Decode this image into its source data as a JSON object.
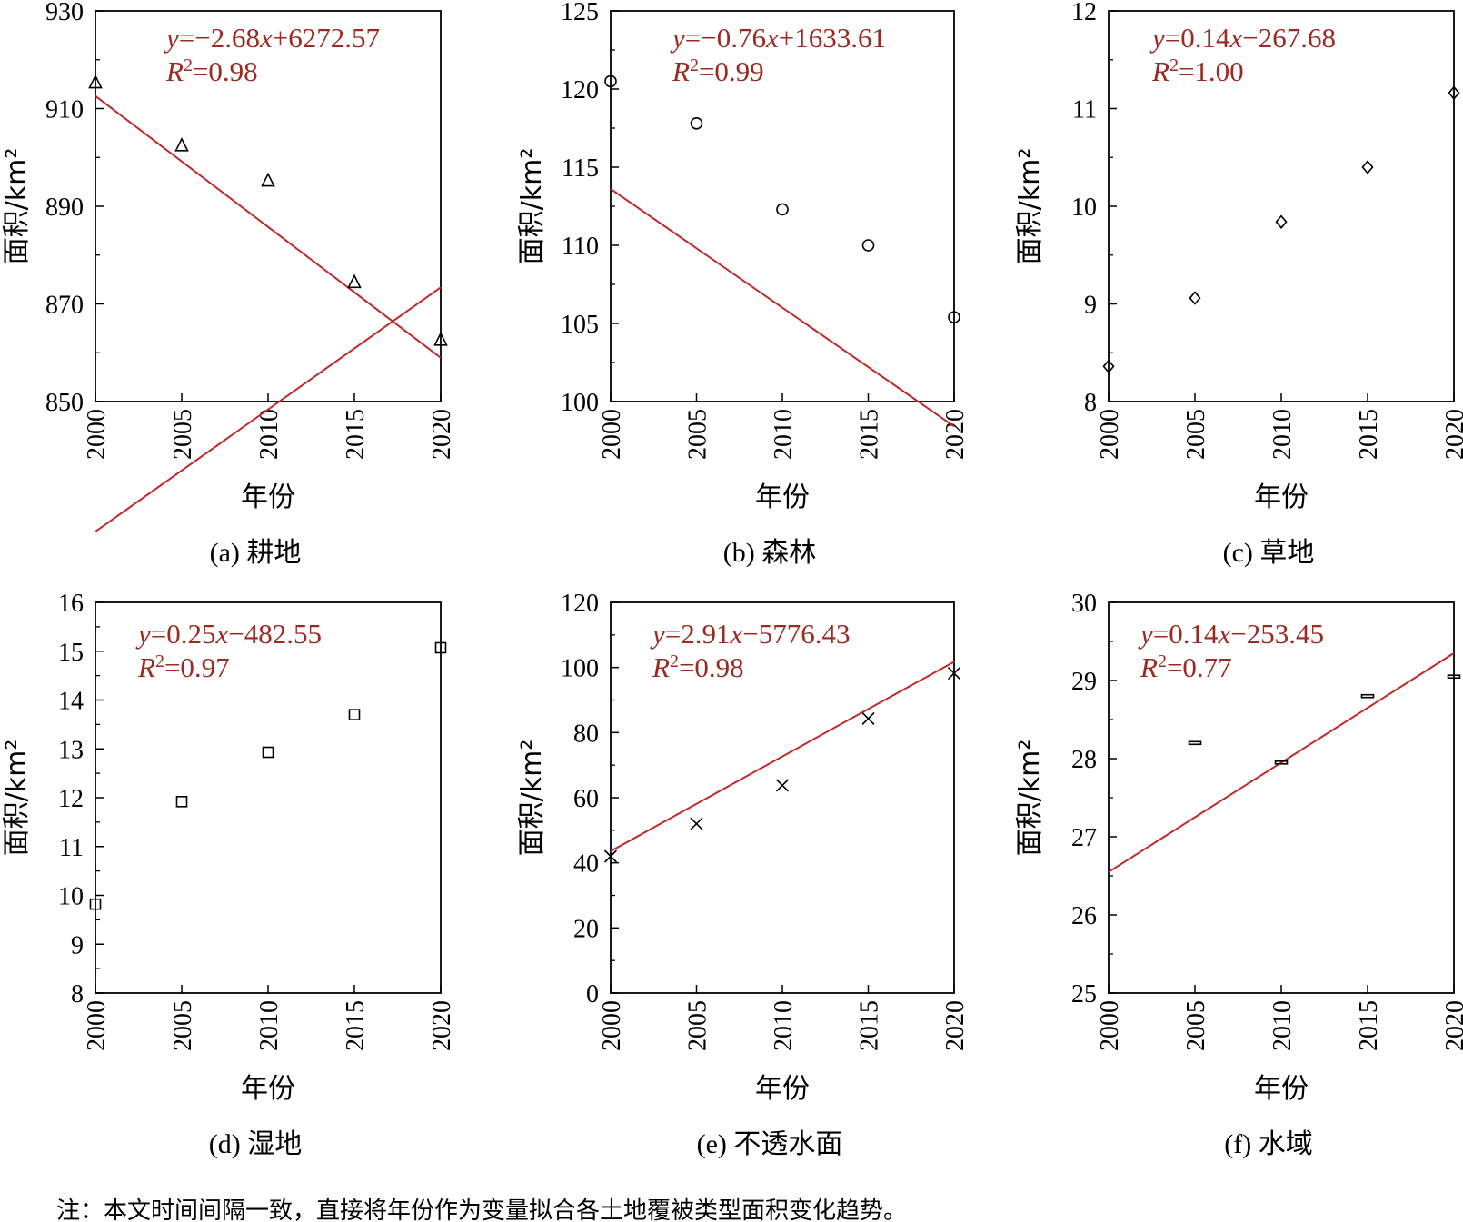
{
  "colors": {
    "fit_line": "#c0282c",
    "equation_text": "#9b2a22",
    "axis": "#000000",
    "marker": "#000000"
  },
  "chart_data": [
    {
      "type": "scatter",
      "panel": "a",
      "caption": "(a) 耕地",
      "xlabel": "年份",
      "ylabel": "面积/km²",
      "x_ticks": [
        "2000",
        "2005",
        "2010",
        "2015",
        "2020"
      ],
      "y_ticks": [
        "850",
        "870",
        "890",
        "910",
        "930"
      ],
      "xlim": [
        2000,
        2020
      ],
      "ylim": [
        850,
        930
      ],
      "marker": "triangle",
      "x": [
        2000,
        2005,
        2010,
        2015,
        2020
      ],
      "y": [
        915.3,
        902.4,
        895.2,
        874.4,
        862.6
      ],
      "fit": {
        "slope": -2.68,
        "intercept": 6272.57
      },
      "equation": "y=−2.68x+6272.57",
      "r2": "R²=0.98"
    },
    {
      "type": "scatter",
      "panel": "b",
      "caption": "(b) 森林",
      "xlabel": "年份",
      "ylabel": "面积/km²",
      "x_ticks": [
        "2000",
        "2005",
        "2010",
        "2015",
        "2020"
      ],
      "y_ticks": [
        "100",
        "105",
        "110",
        "115",
        "120",
        "125"
      ],
      "xlim": [
        2000,
        2020
      ],
      "ylim": [
        100,
        125
      ],
      "marker": "circle",
      "x": [
        2000,
        2005,
        2010,
        2015,
        2020
      ],
      "y": [
        120.5,
        117.8,
        112.3,
        110.0,
        105.4
      ],
      "fit": {
        "slope": -0.76,
        "intercept": 1633.61
      },
      "equation": "y=−0.76x+1633.61",
      "r2": "R²=0.99"
    },
    {
      "type": "scatter",
      "panel": "c",
      "caption": "(c) 草地",
      "xlabel": "年份",
      "ylabel": "面积/km²",
      "x_ticks": [
        "2000",
        "2005",
        "2010",
        "2015",
        "2020"
      ],
      "y_ticks": [
        "8",
        "9",
        "10",
        "11",
        "12"
      ],
      "xlim": [
        2000,
        2020
      ],
      "ylim": [
        8,
        12
      ],
      "marker": "diamond",
      "x": [
        2000,
        2005,
        2010,
        2015,
        2020
      ],
      "y": [
        8.36,
        9.06,
        9.84,
        10.4,
        11.16
      ],
      "fit": {
        "slope": 0.14,
        "intercept": -267.68
      },
      "equation": "y=0.14x−267.68",
      "r2": "R²=1.00"
    },
    {
      "type": "scatter",
      "panel": "d",
      "caption": "(d) 湿地",
      "xlabel": "年份",
      "ylabel": "面积/km²",
      "x_ticks": [
        "2000",
        "2005",
        "2010",
        "2015",
        "2020"
      ],
      "y_ticks": [
        "8",
        "9",
        "10",
        "11",
        "12",
        "13",
        "14",
        "15",
        "16"
      ],
      "xlim": [
        2000,
        2020
      ],
      "ylim": [
        8,
        16
      ],
      "marker": "square",
      "x": [
        2000,
        2005,
        2010,
        2015,
        2020
      ],
      "y": [
        9.82,
        11.92,
        12.93,
        13.7,
        15.07
      ],
      "fit": {
        "slope": 0.25,
        "intercept": -482.55
      },
      "equation": "y=0.25x−482.55",
      "r2": "R²=0.97"
    },
    {
      "type": "scatter",
      "panel": "e",
      "caption": "(e) 不透水面",
      "xlabel": "年份",
      "ylabel": "面积/km²",
      "x_ticks": [
        "2000",
        "2005",
        "2010",
        "2015",
        "2020"
      ],
      "y_ticks": [
        "0",
        "20",
        "40",
        "60",
        "80",
        "100",
        "120"
      ],
      "xlim": [
        2000,
        2020
      ],
      "ylim": [
        0,
        120
      ],
      "marker": "cross",
      "x": [
        2000,
        2005,
        2010,
        2015,
        2020
      ],
      "y": [
        42.0,
        52.0,
        63.8,
        84.3,
        98.2
      ],
      "fit": {
        "slope": 2.91,
        "intercept": -5776.43
      },
      "equation": "y=2.91x−5776.43",
      "r2": "R²=0.98"
    },
    {
      "type": "scatter",
      "panel": "f",
      "caption": "(f) 水域",
      "xlabel": "年份",
      "ylabel": "面积/km²",
      "x_ticks": [
        "2000",
        "2005",
        "2010",
        "2015",
        "2020"
      ],
      "y_ticks": [
        "25",
        "26",
        "27",
        "28",
        "29",
        "30"
      ],
      "xlim": [
        2000,
        2020
      ],
      "ylim": [
        25,
        30
      ],
      "marker": "dash",
      "x": [
        2005,
        2010,
        2015,
        2020
      ],
      "y": [
        28.2,
        27.95,
        28.8,
        29.05
      ],
      "fit": {
        "slope": 0.14,
        "intercept": -253.45
      },
      "equation": "y=0.14x−253.45",
      "r2": "R²=0.77"
    }
  ],
  "note": "注：本文时间间隔一致，直接将年份作为变量拟合各土地覆被类型面积变化趋势。"
}
